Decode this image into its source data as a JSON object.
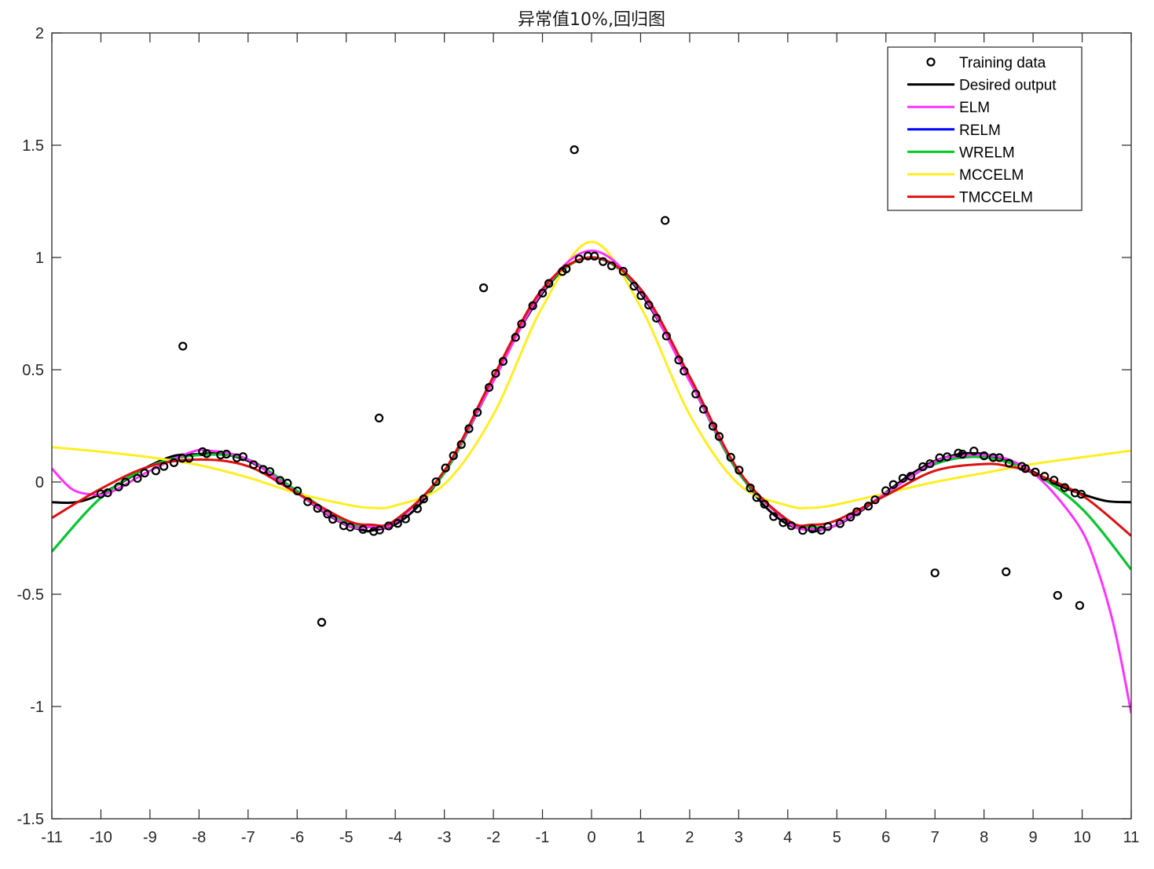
{
  "chart_data": {
    "type": "line",
    "title": "异常值10%,回归图",
    "xlabel": "",
    "ylabel": "",
    "xlim": [
      -11,
      11
    ],
    "ylim": [
      -1.5,
      2
    ],
    "x_ticks": [
      -11,
      -10,
      -9,
      -8,
      -7,
      -6,
      -5,
      -4,
      -3,
      -2,
      -1,
      0,
      1,
      2,
      3,
      4,
      5,
      6,
      7,
      8,
      9,
      10,
      11
    ],
    "y_ticks": [
      -1.5,
      -1,
      -0.5,
      0,
      0.5,
      1,
      1.5,
      2
    ],
    "grid": false,
    "legend_position": "top-right",
    "legend": [
      "Training data",
      "Desired output",
      "ELM",
      "RELM",
      "WRELM",
      "MCCELM",
      "TMCCELM"
    ],
    "colors": {
      "training": "#000000",
      "desired": "#000000",
      "elm": "#ff33ff",
      "relm": "#0000ff",
      "wrelm": "#00cc22",
      "mccelm": "#ffee22",
      "tmccelm": "#dd1111"
    },
    "outliers": [
      {
        "x": -8.33,
        "y": 0.605
      },
      {
        "x": -5.5,
        "y": -0.625
      },
      {
        "x": -4.33,
        "y": 0.285
      },
      {
        "x": -2.2,
        "y": 0.865
      },
      {
        "x": -0.35,
        "y": 1.48
      },
      {
        "x": 1.5,
        "y": 1.165
      },
      {
        "x": 7.0,
        "y": -0.405
      },
      {
        "x": 8.45,
        "y": -0.4
      },
      {
        "x": 9.5,
        "y": -0.505
      },
      {
        "x": 9.95,
        "y": -0.55
      }
    ],
    "training_x_range": [
      -10,
      10
    ],
    "series": [
      {
        "name": "Desired output",
        "x": [
          -11,
          -10.5,
          -10,
          -9.5,
          -9,
          -8.5,
          -8,
          -7.7,
          -7.5,
          -7,
          -6.5,
          -6,
          -5.5,
          -5,
          -4.6,
          -4.5,
          -4,
          -3.5,
          -3,
          -2.5,
          -2,
          -1.5,
          -1,
          -0.5,
          0,
          0.5,
          1,
          1.5,
          2,
          2.5,
          3,
          3.5,
          4,
          4.5,
          4.6,
          5,
          5.5,
          6,
          6.5,
          7,
          7.5,
          7.7,
          8,
          8.5,
          9,
          9.5,
          10,
          10.5,
          11
        ],
        "y": [
          -0.09,
          -0.09,
          -0.054,
          0.008,
          0.073,
          0.117,
          0.124,
          0.128,
          0.125,
          0.094,
          0.033,
          -0.047,
          -0.128,
          -0.192,
          -0.217,
          -0.217,
          -0.189,
          -0.1,
          0.047,
          0.239,
          0.455,
          0.665,
          0.841,
          0.959,
          1.0,
          0.959,
          0.841,
          0.665,
          0.455,
          0.239,
          0.047,
          -0.1,
          -0.189,
          -0.217,
          -0.217,
          -0.192,
          -0.128,
          -0.047,
          0.033,
          0.094,
          0.125,
          0.128,
          0.124,
          0.094,
          0.046,
          -0.013,
          -0.054,
          -0.085,
          -0.09
        ]
      },
      {
        "name": "ELM",
        "x": [
          -11,
          -10.6,
          -10.2,
          -9.8,
          -9,
          -8.2,
          -7.8,
          -7,
          -6,
          -5,
          -4.5,
          -4,
          -3,
          -2,
          -1,
          0,
          1,
          2,
          3,
          4,
          4.5,
          5,
          6,
          7,
          7.5,
          8,
          8.5,
          9,
          9.5,
          10,
          10.3,
          10.6,
          10.8,
          11
        ],
        "y": [
          0.06,
          -0.03,
          -0.055,
          -0.045,
          0.05,
          0.13,
          0.14,
          0.1,
          -0.05,
          -0.19,
          -0.2,
          -0.18,
          0.05,
          0.45,
          0.85,
          1.03,
          0.85,
          0.45,
          0.05,
          -0.18,
          -0.21,
          -0.19,
          -0.05,
          0.09,
          0.115,
          0.12,
          0.1,
          0.04,
          -0.07,
          -0.22,
          -0.38,
          -0.6,
          -0.8,
          -1.03
        ]
      },
      {
        "name": "RELM",
        "x": [
          -11,
          -10,
          -9,
          -8,
          -7,
          -6,
          -5,
          -4.5,
          -4,
          -3,
          -2,
          -1,
          0,
          1,
          2,
          3,
          4,
          4.5,
          5,
          6,
          7,
          8,
          9,
          10,
          11
        ],
        "y": [
          -0.31,
          -0.07,
          0.07,
          0.12,
          0.1,
          -0.04,
          -0.18,
          -0.2,
          -0.17,
          0.04,
          0.45,
          0.85,
          1.0,
          0.85,
          0.45,
          0.04,
          -0.17,
          -0.2,
          -0.19,
          -0.05,
          0.08,
          0.11,
          0.04,
          -0.12,
          -0.39
        ]
      },
      {
        "name": "WRELM",
        "x": [
          -11,
          -10,
          -9,
          -8,
          -7,
          -6,
          -5,
          -4.5,
          -4,
          -3,
          -2,
          -1,
          0,
          1,
          2,
          3,
          4,
          4.5,
          5,
          6,
          7,
          8,
          9,
          10,
          11
        ],
        "y": [
          -0.31,
          -0.07,
          0.07,
          0.12,
          0.1,
          -0.04,
          -0.18,
          -0.2,
          -0.17,
          0.04,
          0.45,
          0.85,
          1.0,
          0.85,
          0.45,
          0.04,
          -0.17,
          -0.2,
          -0.19,
          -0.05,
          0.08,
          0.11,
          0.04,
          -0.12,
          -0.39
        ]
      },
      {
        "name": "MCCELM",
        "x": [
          -11,
          -10,
          -9,
          -8,
          -7,
          -6,
          -5,
          -4.5,
          -4,
          -3,
          -2,
          -1,
          0,
          1,
          2,
          3,
          4,
          4.5,
          5,
          6,
          7,
          8,
          9,
          10,
          11
        ],
        "y": [
          0.155,
          0.135,
          0.11,
          0.075,
          0.02,
          -0.05,
          -0.1,
          -0.115,
          -0.105,
          -0.01,
          0.3,
          0.78,
          1.07,
          0.78,
          0.3,
          -0.01,
          -0.105,
          -0.115,
          -0.1,
          -0.05,
          0.0,
          0.04,
          0.08,
          0.11,
          0.14
        ]
      },
      {
        "name": "TMCCELM",
        "x": [
          -11,
          -10,
          -9,
          -8,
          -7,
          -6,
          -5,
          -4.5,
          -4,
          -3,
          -2,
          -1,
          0,
          1,
          2,
          3,
          4,
          4.5,
          5,
          6,
          7,
          8,
          8.5,
          9,
          10,
          11
        ],
        "y": [
          -0.16,
          -0.03,
          0.07,
          0.1,
          0.07,
          -0.05,
          -0.17,
          -0.19,
          -0.17,
          0.05,
          0.47,
          0.86,
          1.0,
          0.86,
          0.47,
          0.05,
          -0.17,
          -0.19,
          -0.17,
          -0.06,
          0.05,
          0.08,
          0.07,
          0.04,
          -0.06,
          -0.24
        ]
      }
    ]
  }
}
